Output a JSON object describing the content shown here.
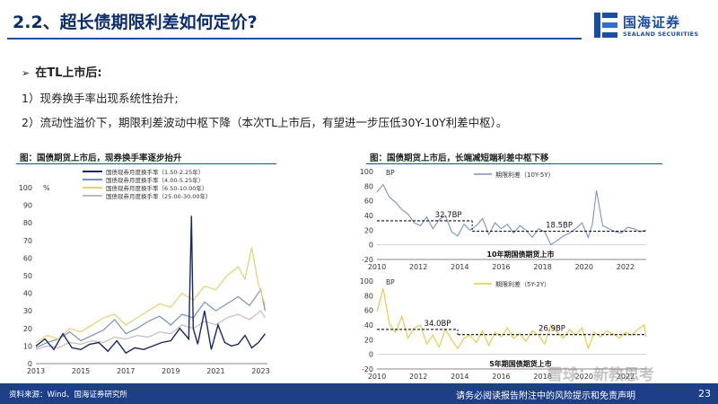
{
  "header": {
    "title": "2.2、超长债期限利差如何定价?",
    "logo_cn": "国海证券",
    "logo_en": "SEALAND SECURITIES"
  },
  "body": {
    "heading": "在TL上市后:",
    "point1": "1）现券换手率出现系统性抬升;",
    "point2": "2）流动性溢价下，期限利差波动中枢下降（本次TL上市后，有望进一步压低30Y-10Y利差中枢）。"
  },
  "figures": {
    "left_title": "图：国债期货上市后，现券换手率逐步抬升",
    "right_title": "图：国债期货上市后，长端减短端利差中枢下移"
  },
  "footer": {
    "source": "资料来源：Wind、国海证券研究所",
    "disclaimer": "请务必阅读报告附注中的风险提示和免责声明",
    "page": "23",
    "watermark": "雪球：新教思考"
  },
  "colors": {
    "brand": "#1b4ea0",
    "footer": "#1d3f87",
    "s1": "#1a2a5e",
    "s2": "#7a8fbf",
    "s3": "#e8d27a",
    "s4": "#bdbdbd",
    "spread": "#7a93c4",
    "spread2": "#e8c840"
  },
  "chart_data": [
    {
      "type": "line",
      "unit": "%",
      "ylim": [
        0,
        100
      ],
      "yticks": [
        0,
        10,
        20,
        30,
        40,
        50,
        60,
        70,
        80,
        90,
        100
      ],
      "xlim": [
        2013,
        2023.3
      ],
      "xticks": [
        2013,
        2015,
        2017,
        2019,
        2021,
        2023
      ],
      "legend": "top-left",
      "series": [
        {
          "name": "国债现券月度换手率（1.50-2.25年）",
          "x": [
            2013.0,
            2013.4,
            2013.8,
            2014.2,
            2014.6,
            2015.0,
            2015.4,
            2015.8,
            2016.2,
            2016.6,
            2017.0,
            2017.4,
            2017.8,
            2018.2,
            2018.6,
            2019.0,
            2019.4,
            2019.8,
            2019.92,
            2020.0,
            2020.2,
            2020.5,
            2020.8,
            2021.1,
            2021.4,
            2021.7,
            2022.0,
            2022.3,
            2022.6,
            2022.9,
            2023.2
          ],
          "y": [
            10,
            14,
            8,
            17,
            9,
            8,
            11,
            12,
            7,
            13,
            6,
            9,
            8,
            10,
            12,
            13,
            20,
            14,
            84,
            20,
            11,
            30,
            8,
            22,
            12,
            10,
            11,
            16,
            9,
            12,
            17
          ]
        },
        {
          "name": "国债现券月度换手率（4.00-5.25年）",
          "x": [
            2013.0,
            2013.5,
            2014.0,
            2014.5,
            2015.0,
            2015.5,
            2016.0,
            2016.5,
            2017.0,
            2017.5,
            2018.0,
            2018.5,
            2019.0,
            2019.5,
            2020.0,
            2020.5,
            2021.0,
            2021.5,
            2022.0,
            2022.5,
            2023.0,
            2023.2
          ],
          "y": [
            9,
            12,
            14,
            18,
            13,
            16,
            19,
            25,
            17,
            20,
            24,
            27,
            22,
            28,
            26,
            35,
            30,
            34,
            38,
            33,
            42,
            30
          ]
        },
        {
          "name": "国债现券月度换手率（6.50-10.00年）",
          "x": [
            2013.0,
            2013.5,
            2014.0,
            2014.5,
            2015.0,
            2015.5,
            2016.0,
            2016.5,
            2017.0,
            2017.5,
            2018.0,
            2018.5,
            2019.0,
            2019.5,
            2020.0,
            2020.5,
            2021.0,
            2021.5,
            2022.0,
            2022.3,
            2022.6,
            2022.9,
            2023.2
          ],
          "y": [
            12,
            16,
            14,
            20,
            18,
            22,
            26,
            28,
            22,
            26,
            30,
            34,
            32,
            40,
            36,
            44,
            42,
            50,
            55,
            48,
            66,
            45,
            33
          ]
        },
        {
          "name": "国债现券月度换手率（25.00-30.00年）",
          "x": [
            2013.0,
            2013.5,
            2014.0,
            2014.5,
            2015.0,
            2015.5,
            2016.0,
            2016.5,
            2017.0,
            2017.5,
            2018.0,
            2018.5,
            2019.0,
            2019.5,
            2020.0,
            2020.5,
            2021.0,
            2021.5,
            2022.0,
            2022.5,
            2023.0,
            2023.2
          ],
          "y": [
            8,
            10,
            9,
            12,
            11,
            13,
            12,
            15,
            14,
            16,
            15,
            18,
            17,
            22,
            20,
            24,
            22,
            26,
            28,
            25,
            30,
            26
          ]
        }
      ]
    },
    {
      "type": "line",
      "unit": "BP",
      "ylim": [
        -20,
        100
      ],
      "yticks": [
        -20,
        0,
        20,
        40,
        60,
        80,
        100
      ],
      "xlim": [
        2010,
        2023
      ],
      "xticks": [
        2010,
        2012,
        2014,
        2016,
        2018,
        2020,
        2022
      ],
      "legend": "top",
      "annotation": "10年期国债期货上市",
      "series": [
        {
          "name": "期限利差（10Y-5Y）",
          "x": [
            2010.0,
            2010.3,
            2010.6,
            2010.9,
            2011.2,
            2011.5,
            2011.8,
            2012.1,
            2012.4,
            2012.7,
            2013.0,
            2013.3,
            2013.6,
            2013.9,
            2014.2,
            2014.5,
            2014.8,
            2015.1,
            2015.4,
            2015.7,
            2016.0,
            2016.3,
            2016.6,
            2016.9,
            2017.2,
            2017.5,
            2017.8,
            2018.1,
            2018.4,
            2018.7,
            2019.0,
            2019.3,
            2019.6,
            2019.9,
            2020.2,
            2020.4,
            2020.6,
            2020.9,
            2021.2,
            2021.5,
            2021.8,
            2022.1,
            2022.4,
            2022.7,
            2023.0
          ],
          "y": [
            72,
            82,
            65,
            58,
            48,
            42,
            30,
            26,
            38,
            22,
            34,
            40,
            18,
            12,
            28,
            20,
            26,
            36,
            14,
            30,
            22,
            28,
            16,
            26,
            20,
            10,
            22,
            18,
            0,
            6,
            12,
            16,
            22,
            30,
            10,
            28,
            74,
            26,
            22,
            18,
            16,
            24,
            22,
            18,
            20
          ]
        },
        {
          "name": "均值",
          "segments": [
            {
              "x": [
                2010,
                2014.6
              ],
              "y": 32.7,
              "label": "32.7BP"
            },
            {
              "x": [
                2014.6,
                2023
              ],
              "y": 18.5,
              "label": "18.5BP"
            }
          ]
        }
      ]
    },
    {
      "type": "line",
      "unit": "BP",
      "ylim": [
        -20,
        100
      ],
      "yticks": [
        -20,
        0,
        20,
        40,
        60,
        80,
        100
      ],
      "xlim": [
        2010,
        2023
      ],
      "xticks": [
        2010,
        2012,
        2014,
        2016,
        2018,
        2020,
        2022
      ],
      "legend": "top",
      "annotation": "5年期国债期货上市",
      "series": [
        {
          "name": "期限利差（5Y-2Y）",
          "x": [
            2010.0,
            2010.3,
            2010.6,
            2010.9,
            2011.2,
            2011.5,
            2011.8,
            2012.1,
            2012.4,
            2012.7,
            2013.0,
            2013.3,
            2013.6,
            2013.9,
            2014.2,
            2014.5,
            2014.8,
            2015.1,
            2015.4,
            2015.7,
            2016.0,
            2016.3,
            2016.6,
            2016.9,
            2017.2,
            2017.5,
            2017.8,
            2018.1,
            2018.4,
            2018.7,
            2019.0,
            2019.3,
            2019.6,
            2019.9,
            2020.2,
            2020.5,
            2020.8,
            2021.1,
            2021.4,
            2021.7,
            2022.0,
            2022.3,
            2022.6,
            2022.9,
            2023.0
          ],
          "y": [
            58,
            90,
            42,
            30,
            52,
            22,
            36,
            40,
            14,
            26,
            10,
            34,
            20,
            8,
            22,
            26,
            16,
            32,
            12,
            30,
            24,
            36,
            22,
            28,
            18,
            32,
            26,
            14,
            40,
            30,
            22,
            34,
            26,
            36,
            8,
            30,
            24,
            32,
            28,
            22,
            30,
            26,
            34,
            40,
            24
          ]
        },
        {
          "name": "均值",
          "segments": [
            {
              "x": [
                2010,
                2013.9
              ],
              "y": 34.0,
              "label": "34.0BP"
            },
            {
              "x": [
                2013.9,
                2023
              ],
              "y": 26.9,
              "label": "26.9BP"
            }
          ]
        }
      ]
    }
  ]
}
